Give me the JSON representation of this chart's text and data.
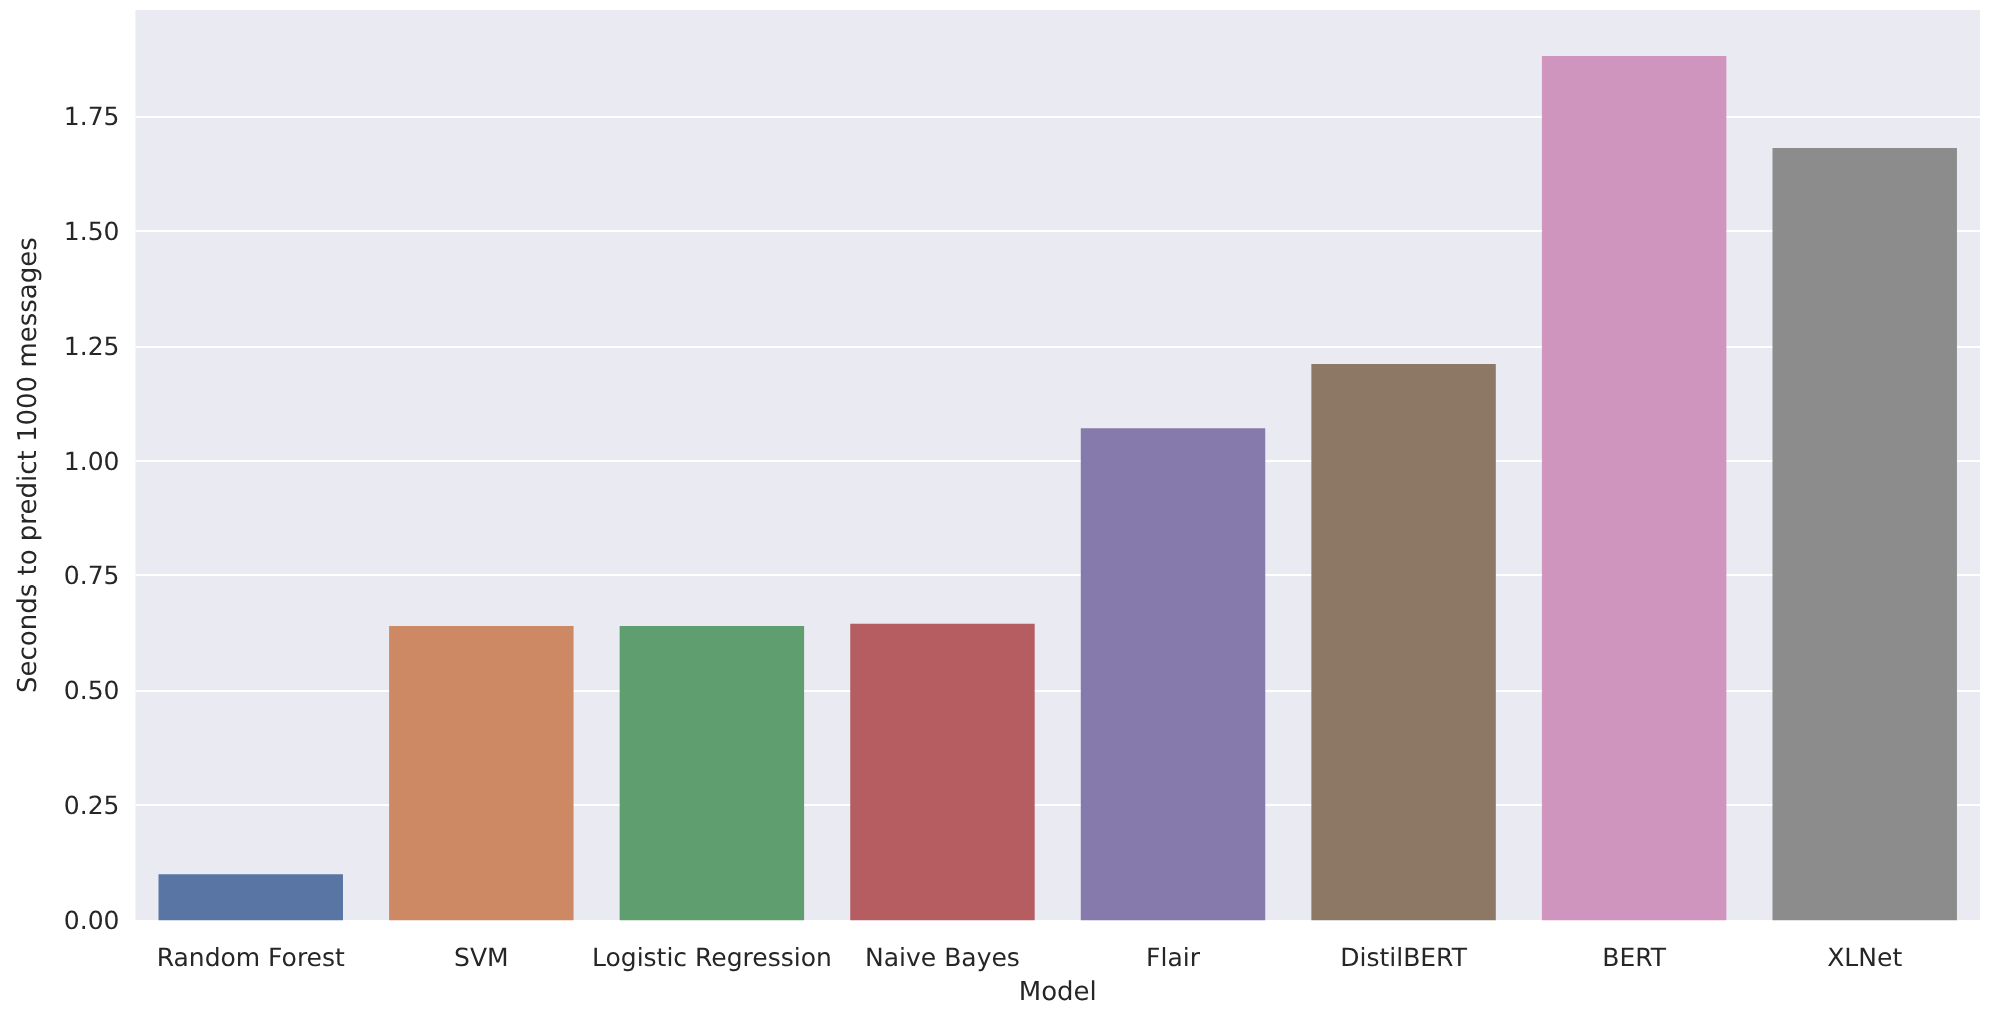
{
  "chart_data": {
    "type": "bar",
    "xlabel": "Model",
    "ylabel": "Seconds to predict 1000 messages",
    "categories": [
      "Random Forest",
      "SVM",
      "Logistic Regression",
      "Naive Bayes",
      "Flair",
      "DistilBERT",
      "BERT",
      "XLNet"
    ],
    "values": [
      0.1,
      0.64,
      0.64,
      0.645,
      1.07,
      1.21,
      1.88,
      1.68
    ],
    "colors": [
      "#5975a4",
      "#cc8963",
      "#5f9e6e",
      "#b55d60",
      "#857aab",
      "#8d7866",
      "#d095bf",
      "#8c8c8c"
    ],
    "ylim": [
      0,
      1.98
    ],
    "yticks": [
      {
        "value": 0,
        "label": "0.00"
      },
      {
        "value": 0.25,
        "label": "0.25"
      },
      {
        "value": 0.5,
        "label": "0.50"
      },
      {
        "value": 0.75,
        "label": "0.75"
      },
      {
        "value": 1,
        "label": "1.00"
      },
      {
        "value": 1.25,
        "label": "1.25"
      },
      {
        "value": 1.5,
        "label": "1.50"
      },
      {
        "value": 1.75,
        "label": "1.75"
      }
    ],
    "grid": "y"
  }
}
